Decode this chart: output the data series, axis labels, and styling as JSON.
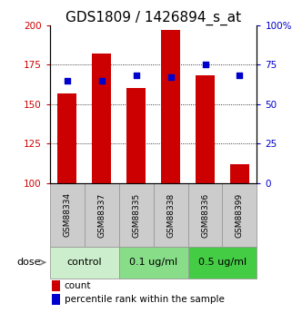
{
  "title": "GDS1809 / 1426894_s_at",
  "samples": [
    "GSM88334",
    "GSM88337",
    "GSM88335",
    "GSM88338",
    "GSM88336",
    "GSM88399"
  ],
  "count_values": [
    157,
    182,
    160,
    197,
    168,
    112
  ],
  "percentile_values": [
    65,
    65,
    68,
    67,
    75,
    68
  ],
  "ylim_left": [
    100,
    200
  ],
  "ylim_right": [
    0,
    100
  ],
  "yticks_left": [
    100,
    125,
    150,
    175,
    200
  ],
  "yticks_right": [
    0,
    25,
    50,
    75,
    100
  ],
  "ytick_labels_left": [
    "100",
    "125",
    "150",
    "175",
    "200"
  ],
  "ytick_labels_right": [
    "0",
    "25",
    "50",
    "75",
    "100%"
  ],
  "bar_color": "#cc0000",
  "dot_color": "#0000cc",
  "bar_width": 0.55,
  "dose_groups": [
    {
      "label": "control",
      "span": [
        0,
        1
      ],
      "color": "#cceecc"
    },
    {
      "label": "0.1 ug/ml",
      "span": [
        2,
        3
      ],
      "color": "#88dd88"
    },
    {
      "label": "0.5 ug/ml",
      "span": [
        4,
        5
      ],
      "color": "#44cc44"
    }
  ],
  "dose_label": "dose",
  "legend_count": "count",
  "legend_percentile": "percentile rank within the sample",
  "grid_yticks": [
    125,
    150,
    175
  ],
  "title_fontsize": 11,
  "tick_fontsize": 7.5,
  "sample_fontsize": 6.5,
  "dose_fontsize": 8,
  "legend_fontsize": 7.5,
  "sample_box_color": "#cccccc",
  "sample_box_edge": "#999999"
}
